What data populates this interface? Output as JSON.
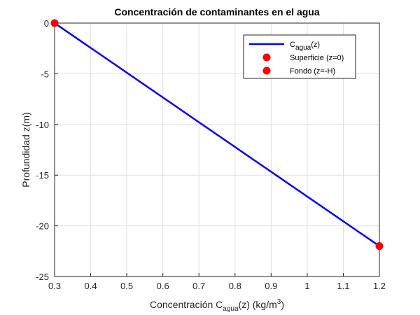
{
  "chart_data": {
    "type": "line",
    "title": "Concentración de contaminantes en el agua",
    "xlabel": [
      "Concentración C",
      "agua",
      "(z) (kg/m",
      "3",
      ")"
    ],
    "ylabel": "Profundidad z(m)",
    "series": [
      {
        "name": [
          "C",
          "agua",
          "(z)"
        ],
        "type": "line",
        "color": "#0000ff",
        "x": [
          0.3,
          1.2
        ],
        "values": [
          0,
          -22
        ]
      },
      {
        "name": [
          "Superficie (z=0)"
        ],
        "type": "scatter",
        "color": "#ff0000",
        "x": [
          0.3
        ],
        "values": [
          0
        ]
      },
      {
        "name": [
          "Fondo (z=-H)"
        ],
        "type": "scatter",
        "color": "#ff0000",
        "x": [
          1.2
        ],
        "values": [
          -22
        ]
      }
    ],
    "xlim": [
      0.3,
      1.2
    ],
    "xticks": [
      0.3,
      0.4,
      0.5,
      0.6,
      0.7,
      0.8,
      0.9,
      1,
      1.1,
      1.2
    ],
    "ylim": [
      -25,
      0
    ],
    "yticks": [
      -25,
      -20,
      -15,
      -10,
      -5,
      0
    ],
    "grid": true,
    "legend": "northeast"
  }
}
